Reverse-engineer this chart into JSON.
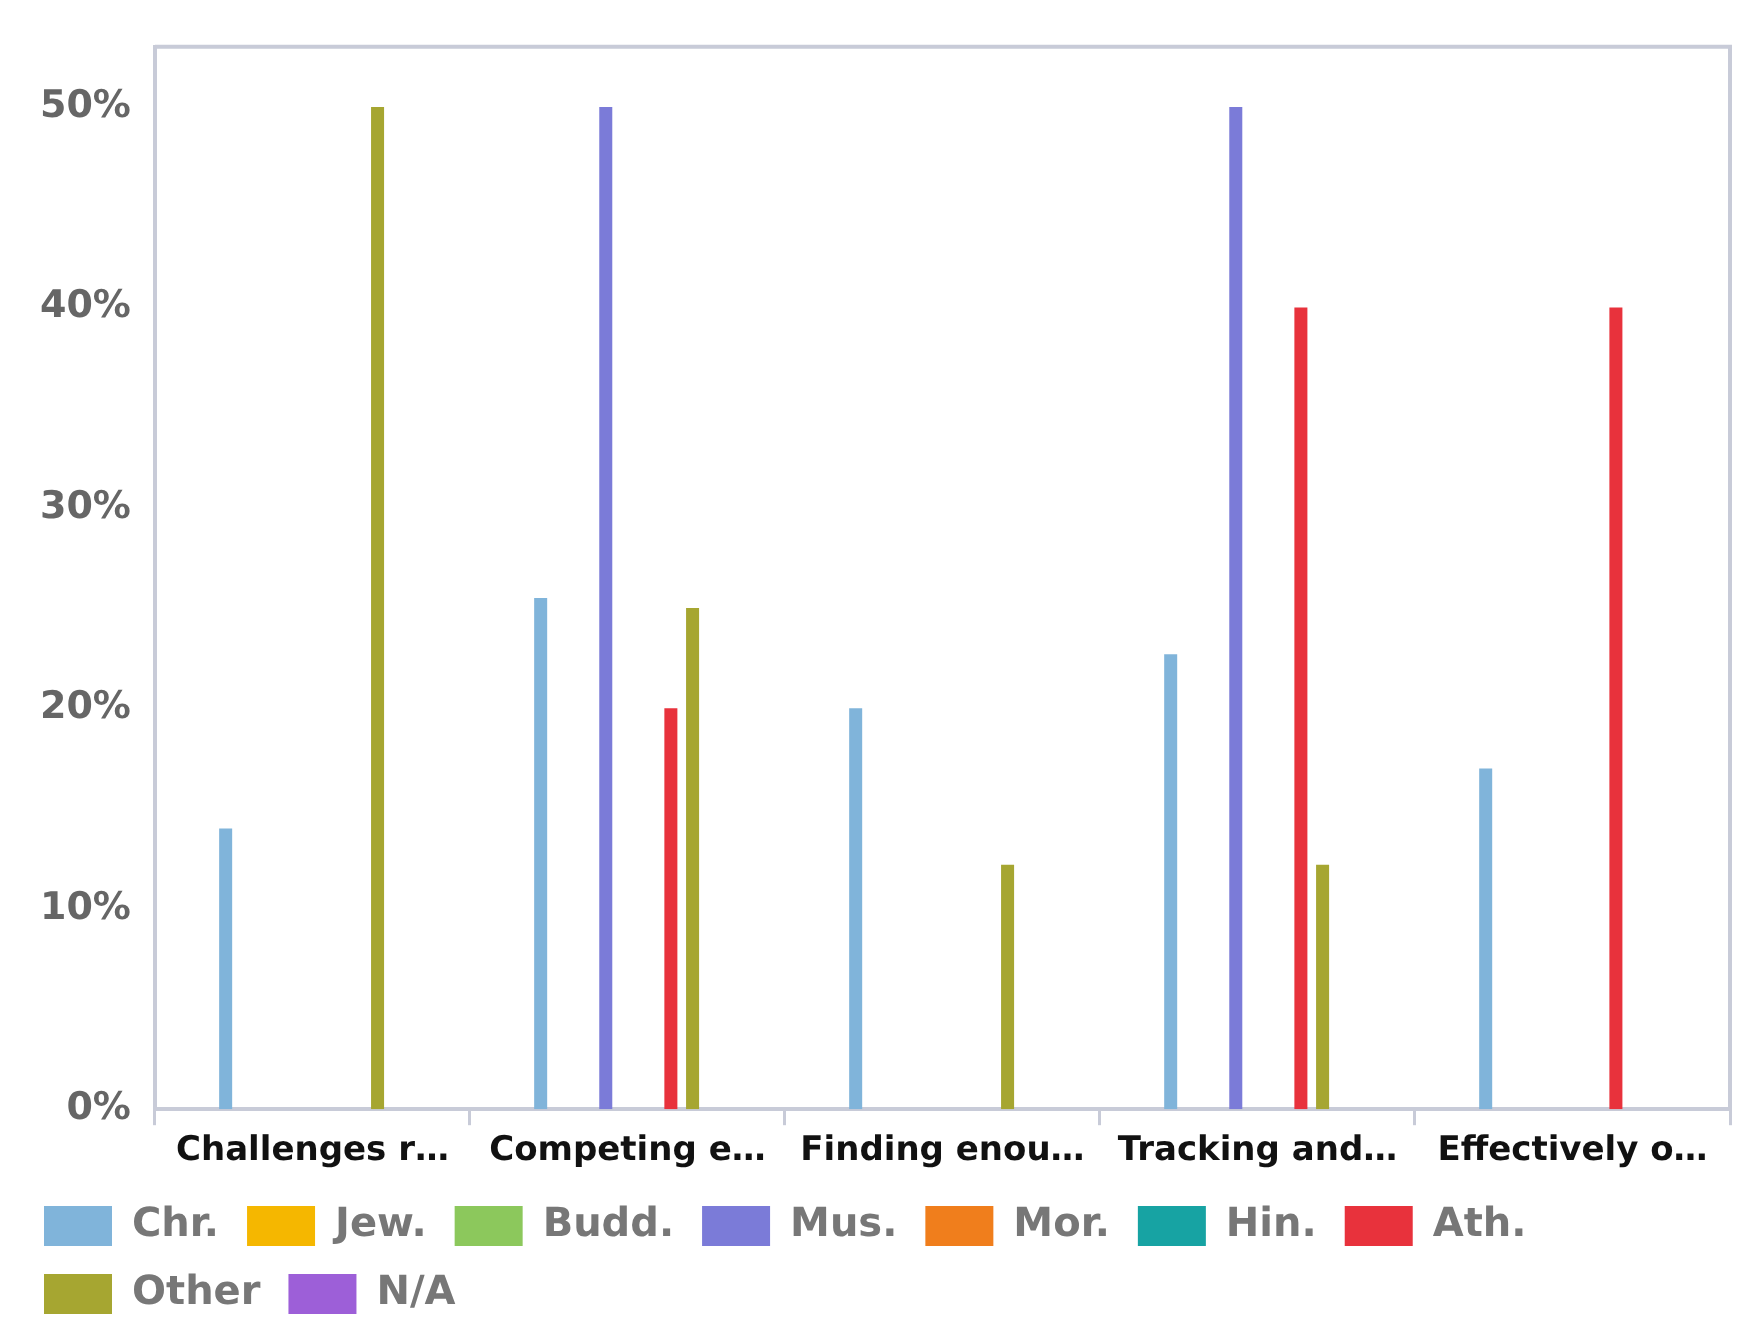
{
  "chart_data": {
    "type": "bar",
    "categories": [
      "Challenges r…",
      "Competing e…",
      "Finding enou…",
      "Tracking and…",
      "Effectively o…"
    ],
    "series": [
      {
        "name": "Chr.",
        "color": "#80b4da",
        "values": [
          14,
          25.5,
          20,
          22.7,
          17
        ]
      },
      {
        "name": "Jew.",
        "color": "#f5b700",
        "values": [
          0,
          0,
          0,
          0,
          0
        ]
      },
      {
        "name": "Budd.",
        "color": "#8cc85c",
        "values": [
          0,
          0,
          0,
          0,
          0
        ]
      },
      {
        "name": "Mus.",
        "color": "#7b7bd8",
        "values": [
          0,
          50,
          0,
          50,
          0
        ]
      },
      {
        "name": "Mor.",
        "color": "#f07e1c",
        "values": [
          0,
          0,
          0,
          0,
          0
        ]
      },
      {
        "name": "Hin.",
        "color": "#17a3a3",
        "values": [
          0,
          0,
          0,
          0,
          0
        ]
      },
      {
        "name": "Ath.",
        "color": "#e8323c",
        "values": [
          0,
          20,
          0,
          40,
          40
        ]
      },
      {
        "name": "Other",
        "color": "#a6a631",
        "values": [
          50,
          25,
          12.2,
          12.2,
          0
        ]
      },
      {
        "name": "N/A",
        "color": "#9d5fd8",
        "values": [
          0,
          0,
          0,
          0,
          0
        ]
      }
    ],
    "ylim": [
      0,
      53
    ],
    "yticks": [
      {
        "value": 0,
        "label": "0%"
      },
      {
        "value": 10,
        "label": "10%"
      },
      {
        "value": 20,
        "label": "20%"
      },
      {
        "value": 30,
        "label": "30%"
      },
      {
        "value": 40,
        "label": "40%"
      },
      {
        "value": 50,
        "label": "50%"
      }
    ],
    "grid": false,
    "legend": "bottom"
  }
}
